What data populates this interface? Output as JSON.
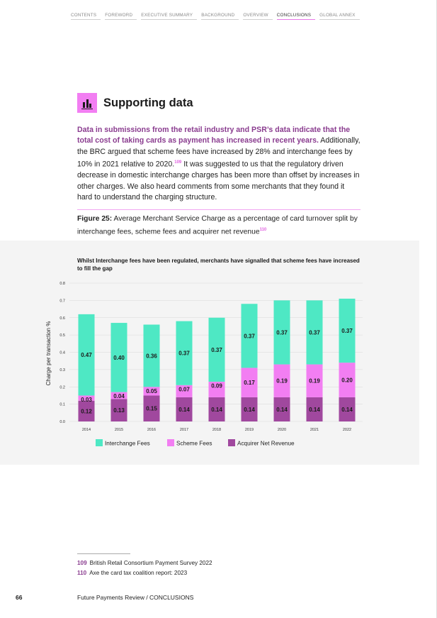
{
  "nav": [
    "CONTENTS",
    "FOREWORD",
    "EXECUTIVE SUMMARY",
    "BACKGROUND",
    "OVERVIEW",
    "CONCLUSIONS",
    "GLOBAL ANNEX"
  ],
  "nav_active": "CONCLUSIONS",
  "section": {
    "icon": "bar-chart-icon",
    "title": "Supporting data"
  },
  "intro": {
    "highlight": "Data in submissions from the retail industry and PSR’s data indicate that the total cost of taking cards as payment has increased in recent years.",
    "text1": " Additionally, the BRC argued that scheme fees have increased by 28% and interchange fees by 10% in 2021 relative to 2020.",
    "ref1": "109",
    "text2": " It was suggested to us that the regulatory driven decrease in domestic interchange charges has been more than offset by increases in other charges. We also heard comments from some merchants that they found it hard to understand the charging structure."
  },
  "figure": {
    "label": "Figure 25:",
    "caption": " Average Merchant Service Charge as a percentage of card turnover split by interchange fees, scheme fees and acquirer net revenue",
    "ref": "110"
  },
  "colors": {
    "interchange": "#4ee8c4",
    "scheme": "#f27ef2",
    "acquirer": "#a0489e",
    "accent": "#8a3c8f"
  },
  "chart_data": {
    "type": "bar",
    "stacked": true,
    "title": "Whilst Interchange fees have been regulated, merchants have signalled that scheme fees have increased to fill the gap",
    "ylabel": "Charge per transaction %",
    "xlabel": "",
    "ylim": [
      0,
      0.8
    ],
    "yticks": [
      "0.0",
      "0.1",
      "0.2",
      "0.3",
      "0.4",
      "0.5",
      "0.6",
      "0.7",
      "0.8"
    ],
    "categories": [
      "2014",
      "2015",
      "2016",
      "2017",
      "2018",
      "2019",
      "2020",
      "2021",
      "2022"
    ],
    "series": [
      {
        "name": "Acquirer Net Revenue",
        "values": [
          0.12,
          0.13,
          0.15,
          0.14,
          0.14,
          0.14,
          0.14,
          0.14,
          0.14
        ],
        "labels": [
          "0.12",
          "0.13",
          "0.15",
          "0.14",
          "0.14",
          "0.14",
          "0.14",
          "0.14",
          "0.14"
        ]
      },
      {
        "name": "Scheme Fees",
        "values": [
          0.03,
          0.04,
          0.05,
          0.07,
          0.09,
          0.17,
          0.19,
          0.19,
          0.2
        ],
        "labels": [
          "0.03",
          "0.04",
          "0.05",
          "0.07",
          "0.09",
          "0.17",
          "0.19",
          "0.19",
          "0.20"
        ]
      },
      {
        "name": "Interchange Fees",
        "values": [
          0.47,
          0.4,
          0.36,
          0.37,
          0.37,
          0.37,
          0.37,
          0.37,
          0.37
        ],
        "labels": [
          "0.47",
          "0.40",
          "0.36",
          "0.37",
          "0.37",
          "0.37",
          "0.37",
          "0.37",
          "0.37"
        ]
      }
    ],
    "legend": [
      "Interchange Fees",
      "Scheme Fees",
      "Acquirer Net Revenue"
    ],
    "legend_position": "bottom"
  },
  "footnotes": [
    {
      "num": "109",
      "text": "British Retail Consortium Payment Survey 2022"
    },
    {
      "num": "110",
      "text": "Axe the card tax coalition report: 2023"
    }
  ],
  "page_number": "66",
  "footer": "Future Payments Review / CONCLUSIONS"
}
